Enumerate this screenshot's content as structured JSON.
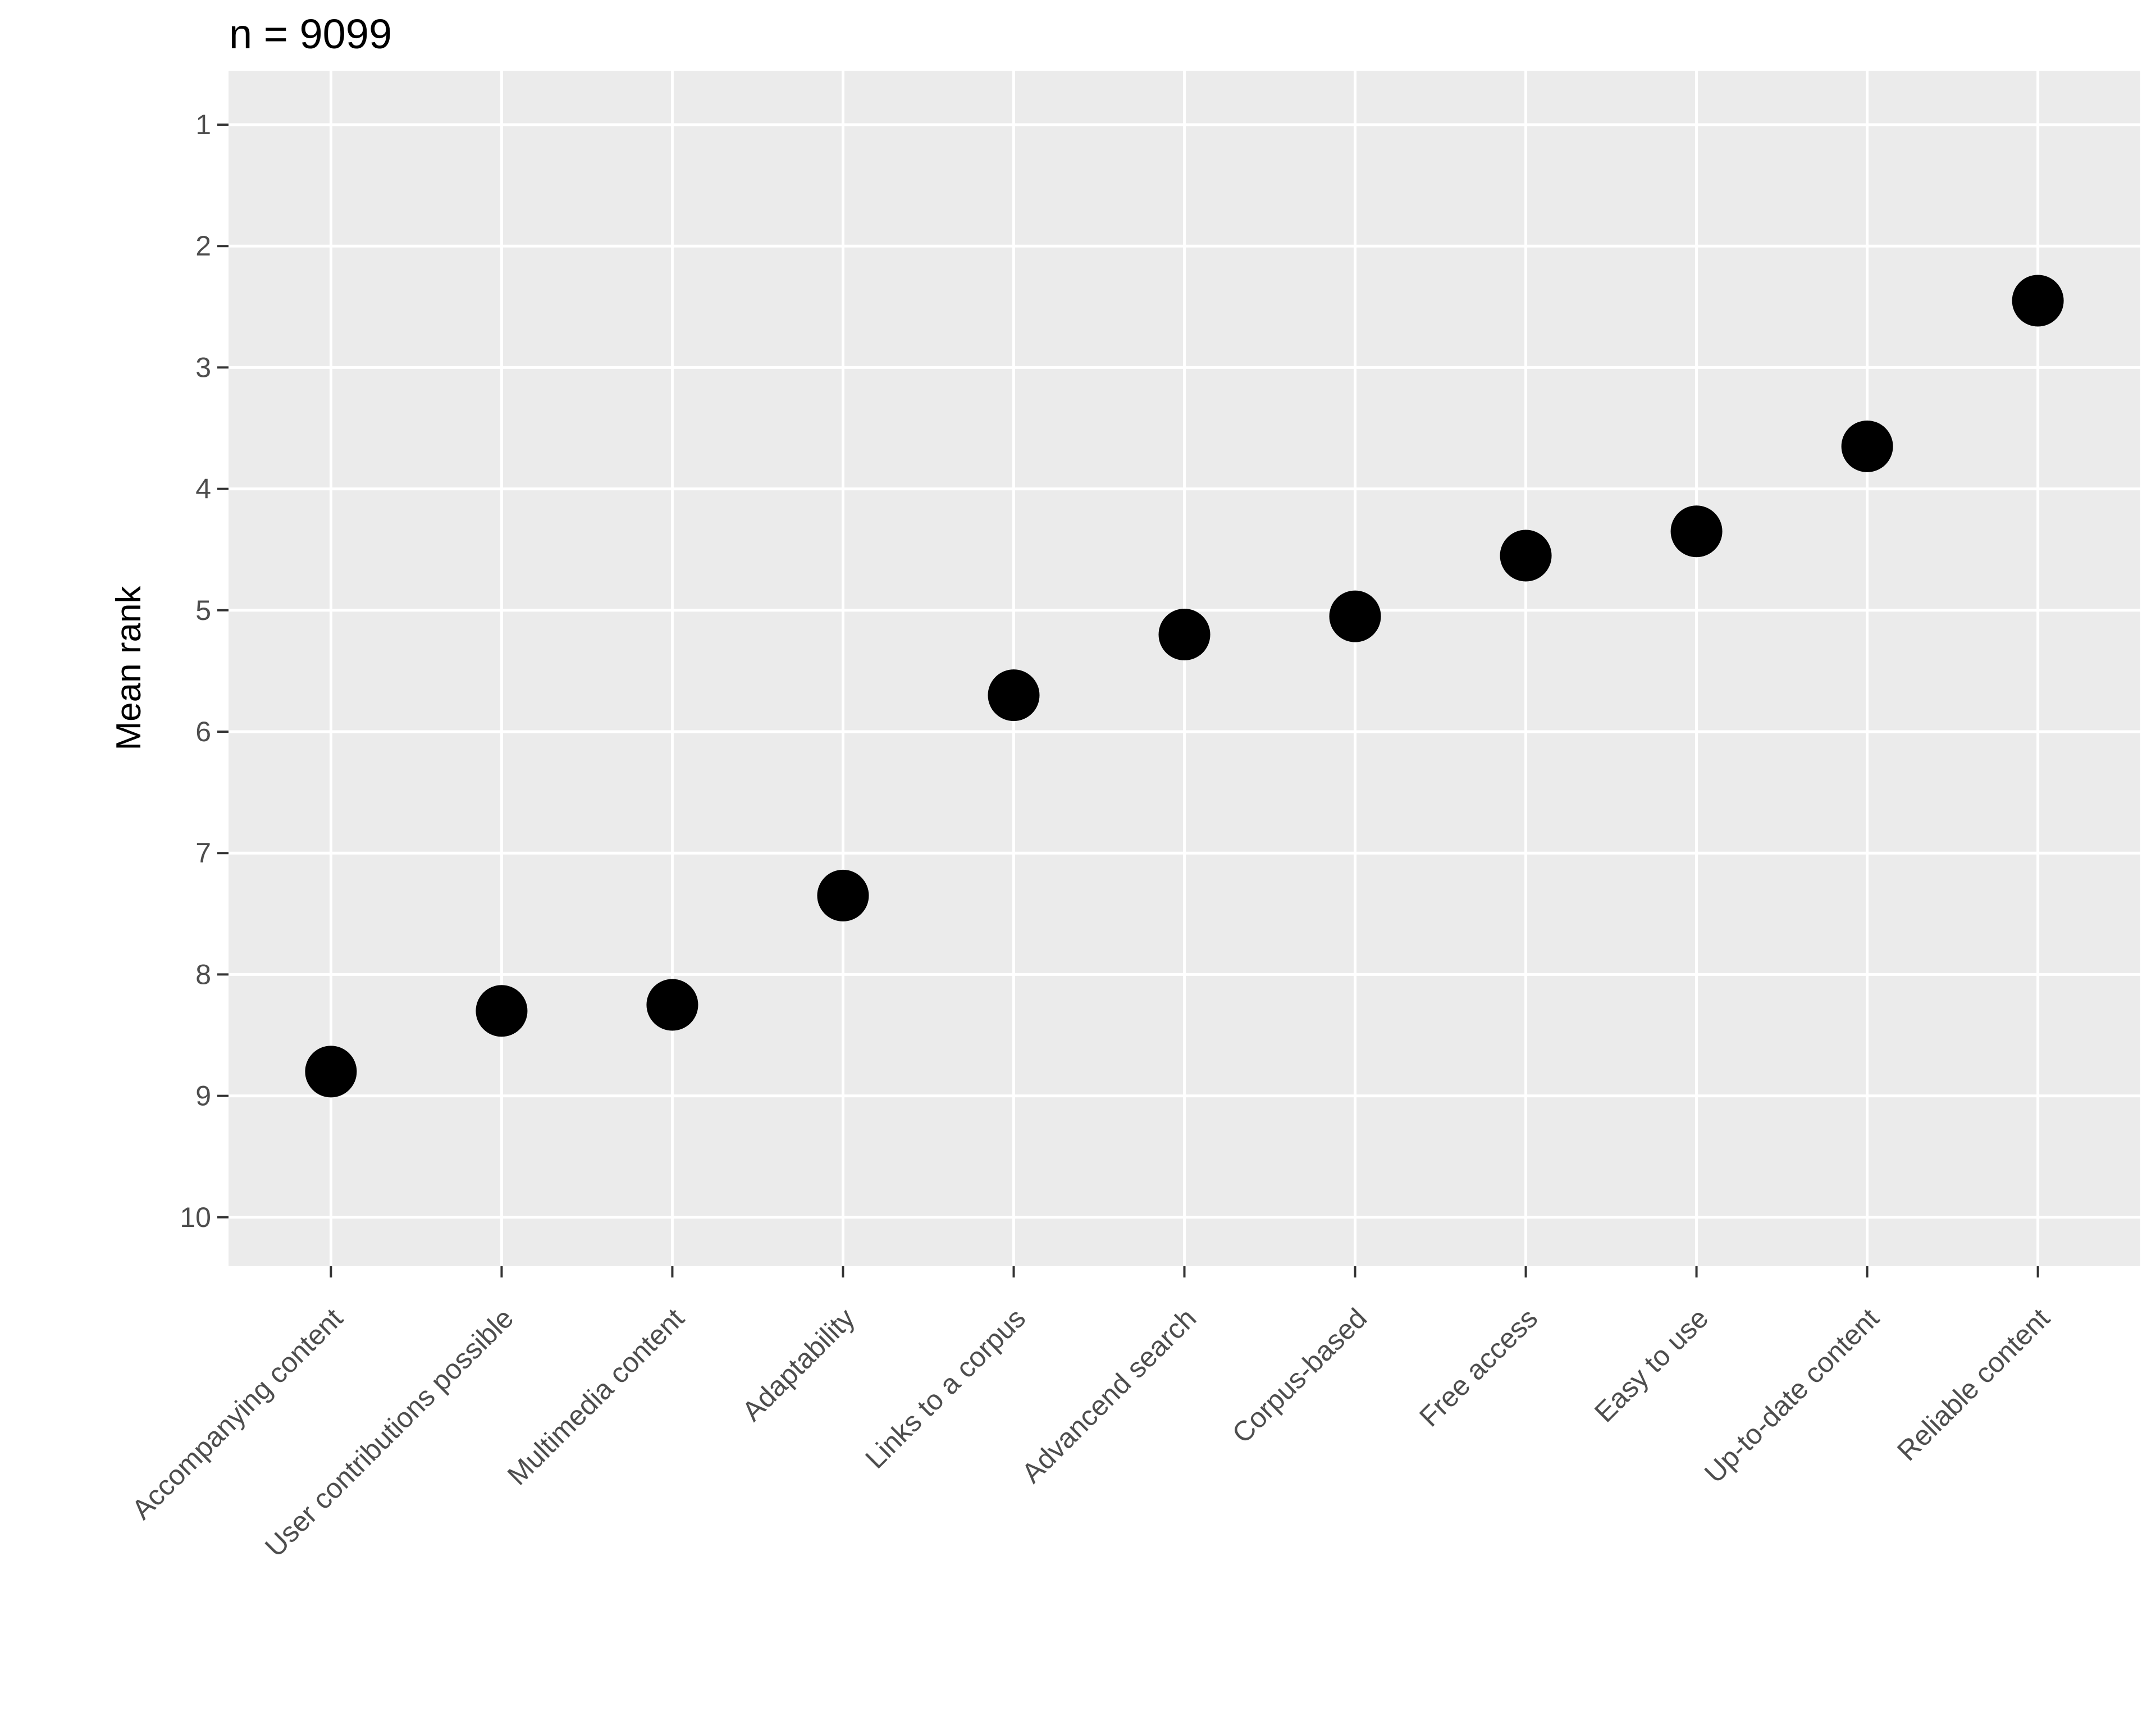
{
  "title": "n = 9099",
  "chart_data": {
    "type": "scatter",
    "title": "n = 9099",
    "xlabel": "",
    "ylabel": "Mean rank",
    "categories": [
      "Accompanying content",
      "User contributions possible",
      "Multimedia content",
      "Adaptability",
      "Links to a corpus",
      "Advancend search",
      "Corpus-based",
      "Free access",
      "Easy to use",
      "Up-to-date content",
      "Reliable content"
    ],
    "values": [
      8.8,
      8.3,
      8.25,
      7.35,
      5.7,
      5.2,
      5.05,
      4.55,
      4.35,
      3.65,
      2.45
    ],
    "y_ticks": [
      1,
      2,
      3,
      4,
      5,
      6,
      7,
      8,
      9,
      10
    ],
    "ylim": [
      1,
      10
    ],
    "y_reversed": true,
    "x_tick_angle": 45,
    "grid": "major-only",
    "legend": "none",
    "marker": "filled-circle",
    "colors": {
      "plot_bg": "#FFFFFF",
      "panel_bg": "#EBEBEB",
      "grid": "#FFFFFF",
      "point": "#000000",
      "tick_text": "#4D4D4D",
      "tick_mark": "#333333",
      "title_text": "#000000"
    }
  }
}
